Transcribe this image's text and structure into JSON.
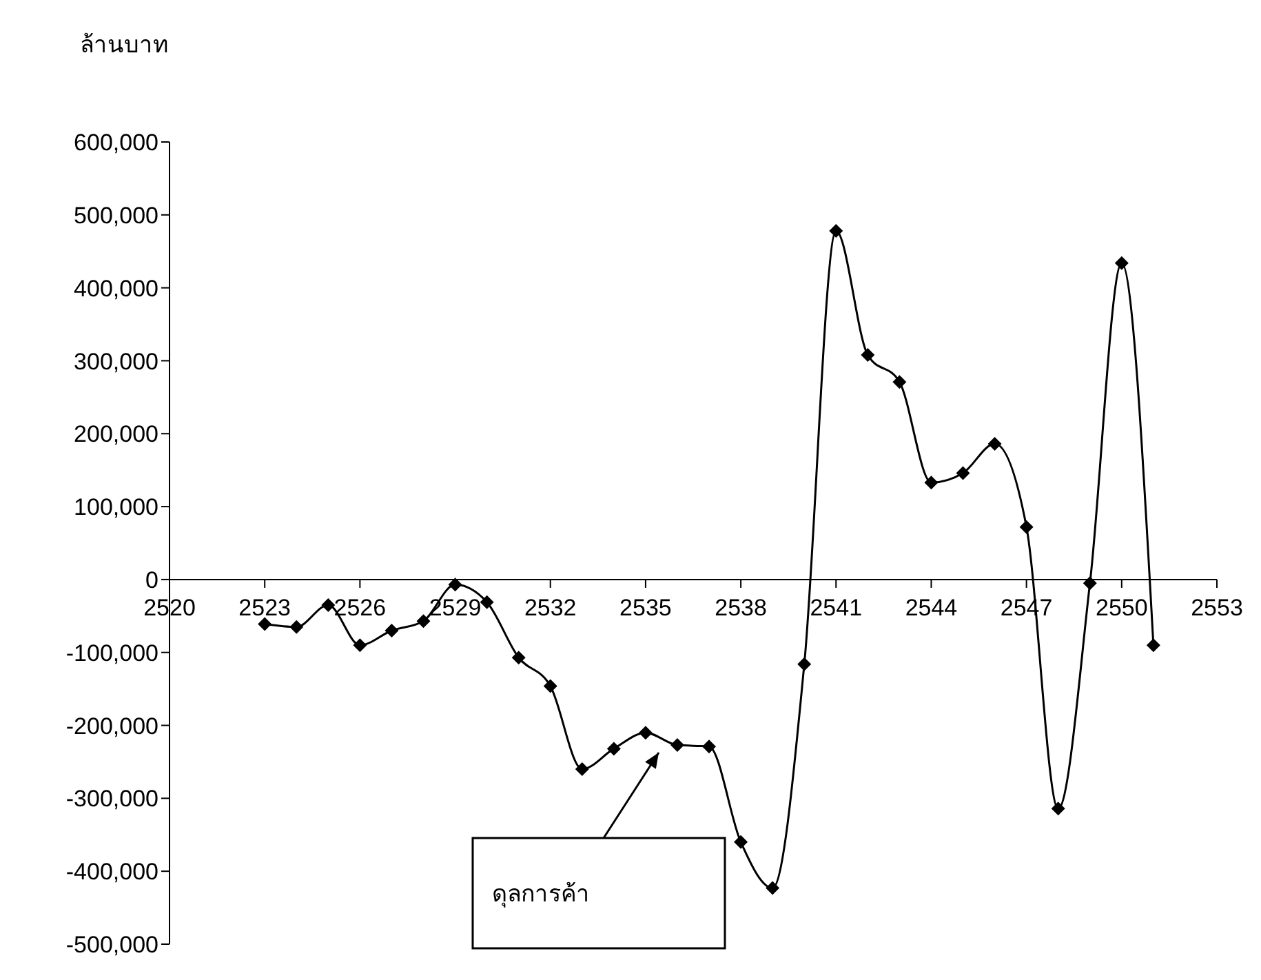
{
  "chart_data": {
    "type": "line",
    "ylabel": "ล้านบาท",
    "x": [
      2523,
      2524,
      2525,
      2526,
      2527,
      2528,
      2529,
      2530,
      2531,
      2532,
      2533,
      2534,
      2535,
      2536,
      2537,
      2538,
      2539,
      2540,
      2541,
      2542,
      2543,
      2544,
      2545,
      2546,
      2547,
      2548,
      2549,
      2550,
      2551
    ],
    "series": [
      {
        "color": "#000000",
        "values": [
          -61000,
          -65000,
          -35000,
          -90000,
          -70000,
          -57000,
          -7000,
          -31000,
          -107000,
          -146000,
          -260000,
          -232000,
          -210000,
          -227000,
          -229000,
          -360000,
          -423000,
          -116000,
          478000,
          308000,
          271000,
          133000,
          146000,
          186000,
          72000,
          -314000,
          -5000,
          434000,
          -90000
        ]
      }
    ],
    "xlim": [
      2520,
      2553
    ],
    "xticks": [
      2520,
      2523,
      2526,
      2529,
      2532,
      2535,
      2538,
      2541,
      2544,
      2547,
      2550,
      2553
    ],
    "ylim": [
      -500000,
      600000
    ],
    "yticks": [
      {
        "value": -500000,
        "label": "-500,000"
      },
      {
        "value": -400000,
        "label": "-400,000"
      },
      {
        "value": -300000,
        "label": "-300,000"
      },
      {
        "value": -200000,
        "label": "-200,000"
      },
      {
        "value": -100000,
        "label": "-100,000"
      },
      0,
      {
        "value": 100000,
        "label": "100,000"
      },
      {
        "value": 200000,
        "label": "200,000"
      },
      {
        "value": 300000,
        "label": "300,000"
      },
      {
        "value": 400000,
        "label": "400,000"
      },
      {
        "value": 500000,
        "label": "500,000"
      },
      {
        "value": 600000,
        "label": "600,000"
      }
    ],
    "marker": "diamond",
    "annotations": [
      "ดุลการค้า"
    ]
  }
}
